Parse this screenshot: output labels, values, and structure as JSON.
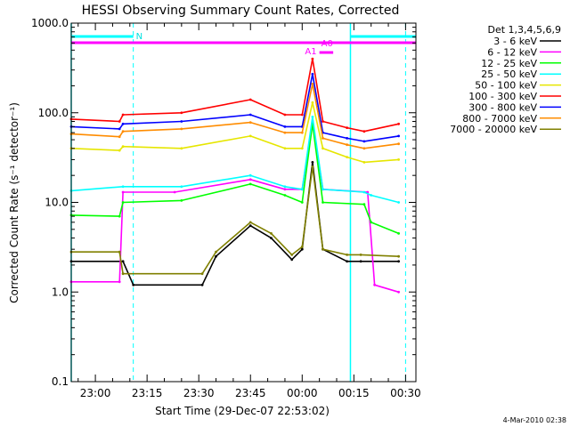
{
  "chart_data": {
    "type": "line",
    "title": "HESSI Observing Summary Count Rates, Corrected",
    "xlabel": "Start Time (29-Dec-07 22:53:02)",
    "ylabel": "Corrected Count Rate (s⁻¹ detector⁻¹)",
    "yscale": "log",
    "ylim": [
      0.1,
      1000.0
    ],
    "xlim_minutes": [
      0,
      100
    ],
    "x_ticks": [
      {
        "label": "23:00",
        "min": 7
      },
      {
        "label": "23:15",
        "min": 22
      },
      {
        "label": "23:30",
        "min": 37
      },
      {
        "label": "23:45",
        "min": 52
      },
      {
        "label": "00:00",
        "min": 67
      },
      {
        "label": "00:15",
        "min": 82
      },
      {
        "label": "00:30",
        "min": 97
      }
    ],
    "y_ticks": [
      {
        "label": "0.1",
        "value": 0.1
      },
      {
        "label": "1.0",
        "value": 1.0
      },
      {
        "label": "10.0",
        "value": 10.0
      },
      {
        "label": "100.0",
        "value": 100.0
      },
      {
        "label": "1000.0",
        "value": 1000.0
      }
    ],
    "legend_title": "Det 1,3,4,5,6,9",
    "series": [
      {
        "name": "3 - 6 keV",
        "color": "#000000",
        "values": [
          [
            0,
            2.2
          ],
          [
            15,
            2.2
          ],
          [
            18,
            1.2
          ],
          [
            38,
            1.2
          ],
          [
            42,
            2.5
          ],
          [
            52,
            5.5
          ],
          [
            58,
            4
          ],
          [
            64,
            2.3
          ],
          [
            67,
            3
          ],
          [
            70,
            28
          ],
          [
            73,
            3
          ],
          [
            80,
            2.2
          ],
          [
            84,
            2.2
          ],
          [
            95,
            2.2
          ]
        ]
      },
      {
        "name": "6 - 12 keV",
        "color": "#ff00ff",
        "values": [
          [
            0,
            1.3
          ],
          [
            14,
            1.3
          ],
          [
            15,
            13
          ],
          [
            30,
            13
          ],
          [
            52,
            18
          ],
          [
            62,
            14
          ],
          [
            67,
            14
          ],
          [
            70,
            80
          ],
          [
            73,
            14
          ],
          [
            86,
            13
          ],
          [
            88,
            1.2
          ],
          [
            95,
            1.0
          ]
        ]
      },
      {
        "name": "12 - 25 keV",
        "color": "#00ff00",
        "values": [
          [
            0,
            7.2
          ],
          [
            14,
            7
          ],
          [
            15,
            10
          ],
          [
            32,
            10.5
          ],
          [
            52,
            16
          ],
          [
            62,
            12
          ],
          [
            67,
            10
          ],
          [
            70,
            75
          ],
          [
            73,
            10
          ],
          [
            85,
            9.5
          ],
          [
            87,
            6
          ],
          [
            95,
            4.5
          ]
        ]
      },
      {
        "name": "25 - 50 keV",
        "color": "#00ffff",
        "values": [
          [
            0,
            13.5
          ],
          [
            15,
            15
          ],
          [
            32,
            15
          ],
          [
            52,
            20
          ],
          [
            62,
            15
          ],
          [
            67,
            14
          ],
          [
            70,
            90
          ],
          [
            73,
            14
          ],
          [
            85,
            13
          ],
          [
            87,
            12
          ],
          [
            95,
            10
          ]
        ]
      },
      {
        "name": "50 - 100 keV",
        "color": "#e6e600",
        "values": [
          [
            0,
            40
          ],
          [
            14,
            38
          ],
          [
            15,
            42
          ],
          [
            32,
            40
          ],
          [
            52,
            55
          ],
          [
            62,
            40
          ],
          [
            67,
            40
          ],
          [
            70,
            130
          ],
          [
            73,
            40
          ],
          [
            80,
            32
          ],
          [
            85,
            28
          ],
          [
            95,
            30
          ]
        ]
      },
      {
        "name": "100 - 300 keV",
        "color": "#ff0000",
        "values": [
          [
            0,
            85
          ],
          [
            14,
            80
          ],
          [
            15,
            95
          ],
          [
            32,
            100
          ],
          [
            52,
            140
          ],
          [
            62,
            95
          ],
          [
            67,
            95
          ],
          [
            70,
            400
          ],
          [
            73,
            80
          ],
          [
            80,
            68
          ],
          [
            85,
            62
          ],
          [
            95,
            75
          ]
        ]
      },
      {
        "name": "300 - 800 keV",
        "color": "#0000ff",
        "values": [
          [
            0,
            70
          ],
          [
            14,
            66
          ],
          [
            15,
            75
          ],
          [
            32,
            80
          ],
          [
            52,
            95
          ],
          [
            62,
            70
          ],
          [
            67,
            70
          ],
          [
            70,
            270
          ],
          [
            73,
            60
          ],
          [
            80,
            52
          ],
          [
            85,
            48
          ],
          [
            95,
            55
          ]
        ]
      },
      {
        "name": "800 - 7000 keV",
        "color": "#ff8c00",
        "values": [
          [
            0,
            58
          ],
          [
            14,
            54
          ],
          [
            15,
            62
          ],
          [
            32,
            66
          ],
          [
            52,
            78
          ],
          [
            62,
            60
          ],
          [
            67,
            60
          ],
          [
            70,
            210
          ],
          [
            73,
            52
          ],
          [
            80,
            44
          ],
          [
            85,
            40
          ],
          [
            95,
            45
          ]
        ]
      },
      {
        "name": "7000 - 20000 keV",
        "color": "#808000",
        "values": [
          [
            0,
            2.8
          ],
          [
            14,
            2.8
          ],
          [
            15,
            1.6
          ],
          [
            38,
            1.6
          ],
          [
            42,
            2.8
          ],
          [
            52,
            6
          ],
          [
            58,
            4.5
          ],
          [
            64,
            2.6
          ],
          [
            67,
            3.2
          ],
          [
            70,
            25
          ],
          [
            73,
            3
          ],
          [
            80,
            2.6
          ],
          [
            84,
            2.6
          ],
          [
            95,
            2.5
          ]
        ]
      }
    ],
    "annotations": {
      "labels": [
        "N",
        "A0",
        "A1"
      ],
      "night_bars": [
        {
          "label": "N",
          "start_min": 0,
          "end_min": 18
        },
        {
          "start_min": 81,
          "end_min": 100
        }
      ],
      "attenuator_bar": {
        "start_min": 0,
        "end_min": 100
      },
      "a0_bar_start_min": 72,
      "a1_bar": {
        "start_min": 72,
        "end_min": 76
      },
      "vlines_solid_min": [
        0,
        81
      ],
      "vlines_dashed_min": [
        18,
        97
      ]
    },
    "footer_date": "4-Mar-2010 02:38"
  }
}
